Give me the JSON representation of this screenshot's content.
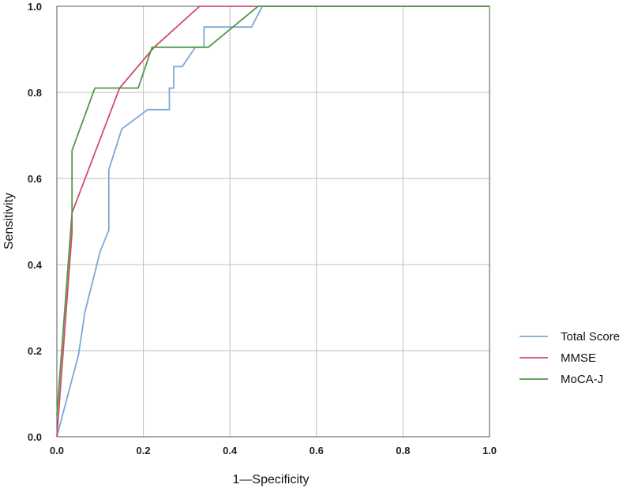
{
  "chart_data": {
    "type": "line",
    "xlabel": "1—Specificity",
    "ylabel": "Sensitivity",
    "xlim": [
      0,
      1
    ],
    "ylim": [
      0,
      1
    ],
    "x_ticks": [
      "0.0",
      "0.2",
      "0.4",
      "0.6",
      "0.8",
      "1.0"
    ],
    "y_ticks": [
      "0.0",
      "0.2",
      "0.4",
      "0.6",
      "0.8",
      "1.0"
    ],
    "grid": true,
    "legend_position": "right",
    "series": [
      {
        "name": "Total Score",
        "color": "#7ba7d8",
        "x": [
          0,
          0.05,
          0.065,
          0.1,
          0.12,
          0.12,
          0.15,
          0.21,
          0.26,
          0.26,
          0.27,
          0.27,
          0.29,
          0.29,
          0.32,
          0.34,
          0.34,
          0.45,
          0.475,
          1.0
        ],
        "y": [
          0,
          0.19,
          0.29,
          0.43,
          0.48,
          0.62,
          0.715,
          0.76,
          0.76,
          0.81,
          0.81,
          0.86,
          0.86,
          0.86,
          0.905,
          0.905,
          0.952,
          0.952,
          1.0,
          1.0
        ]
      },
      {
        "name": "MMSE",
        "color": "#d24b6a",
        "x": [
          0,
          0.035,
          0.035,
          0.145,
          0.225,
          0.33,
          0.47,
          1.0
        ],
        "y": [
          0,
          0.475,
          0.52,
          0.81,
          0.905,
          1.0,
          1.0,
          1.0
        ]
      },
      {
        "name": "MoCA-J",
        "color": "#4e9a47",
        "x": [
          0,
          0.035,
          0.035,
          0.088,
          0.188,
          0.22,
          0.35,
          0.465,
          1.0
        ],
        "y": [
          0.05,
          0.52,
          0.665,
          0.81,
          0.81,
          0.905,
          0.905,
          1.0,
          1.0
        ]
      }
    ]
  }
}
